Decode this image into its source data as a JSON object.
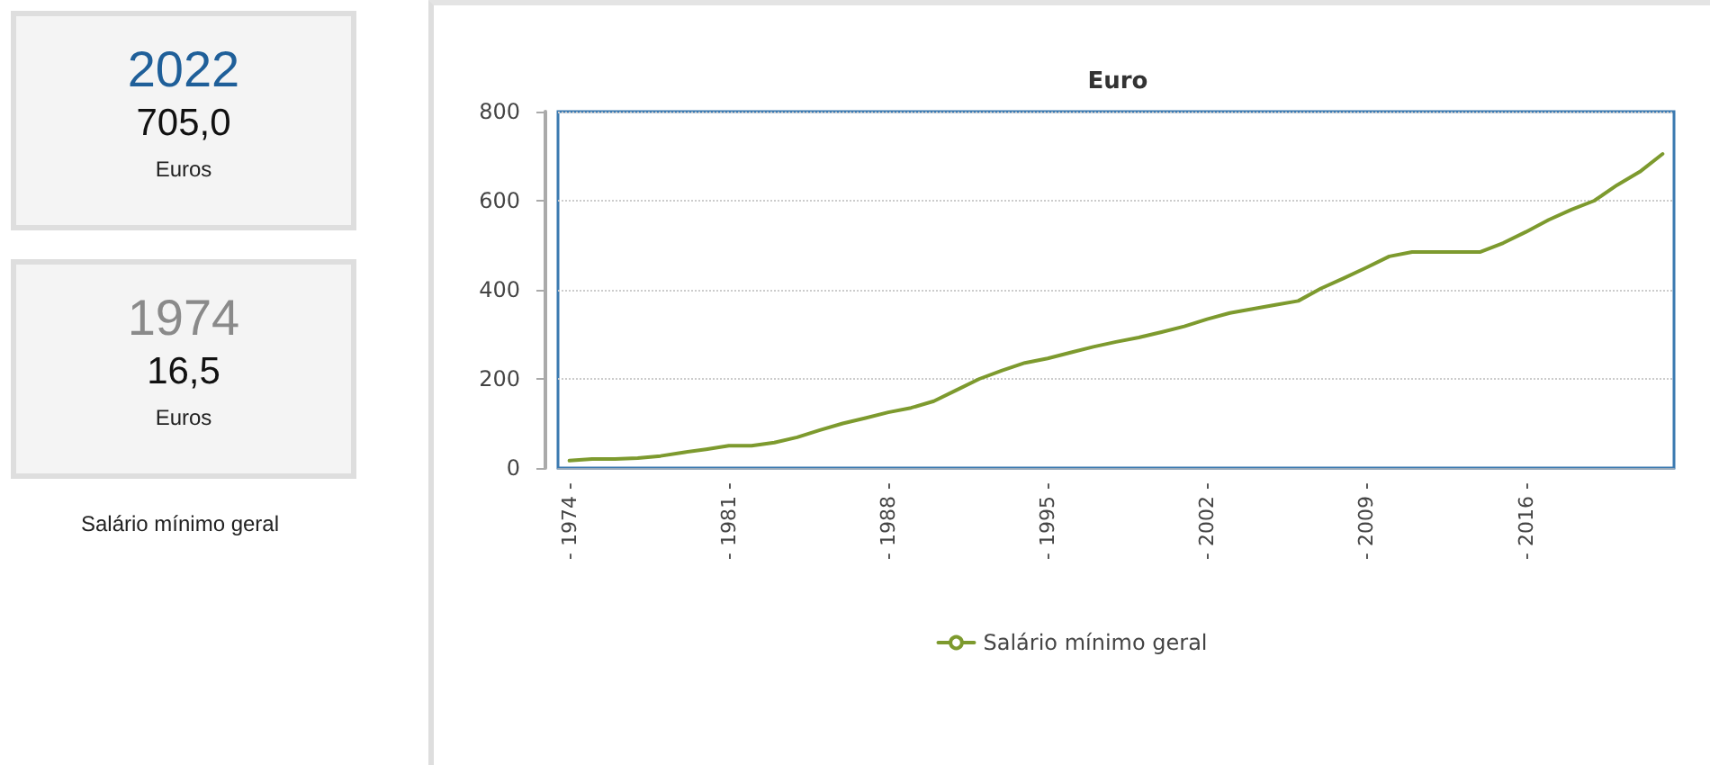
{
  "chart_data": [
    {
      "type": "other",
      "annotations": [
        "2022",
        "705,0",
        "Euros",
        "1974",
        "16,5",
        "Euros",
        "Salário mínimo geral"
      ]
    },
    {
      "type": "line",
      "title": "Euro",
      "categories": [
        "- 1974 -",
        null,
        null,
        null,
        null,
        null,
        null,
        "- 1981 -",
        null,
        null,
        null,
        null,
        null,
        null,
        "- 1988 -",
        null,
        null,
        null,
        null,
        null,
        null,
        "- 1995 -",
        null,
        null,
        null,
        null,
        null,
        null,
        "- 2002 -",
        null,
        null,
        null,
        null,
        null,
        null,
        "- 2009 -",
        null,
        null,
        null,
        null,
        null,
        null,
        "- 2016 -",
        null,
        null,
        null,
        null,
        null,
        null
      ],
      "series": [
        {
          "name": "Salário mínimo geral",
          "color": "#7d9a2e",
          "values": [
            16.5,
            20,
            20,
            22,
            27,
            35,
            42,
            50,
            50,
            57,
            69,
            85,
            100,
            112,
            125,
            135,
            150,
            175,
            200,
            219,
            236,
            246,
            259,
            272,
            283,
            293,
            305,
            318,
            334,
            348,
            357,
            366,
            375,
            403,
            426,
            450,
            475,
            485,
            485,
            485,
            485,
            505,
            530,
            557,
            580,
            600,
            635,
            665,
            705
          ]
        }
      ],
      "ylim": [
        0,
        800
      ],
      "yticks": [
        0,
        200,
        400,
        600,
        800
      ],
      "grid": "y",
      "line_style": "solid",
      "legend": "bottom"
    }
  ]
}
